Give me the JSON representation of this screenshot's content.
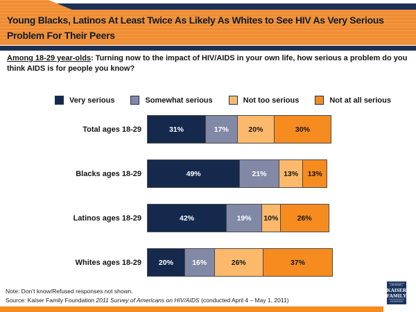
{
  "header": {
    "title": "Young Blacks, Latinos At Least Twice As Likely As Whites to See HIV As Very Serious Problem For Their Peers"
  },
  "question": {
    "lead": "Among 18-29 year-olds",
    "rest": ": Turning now to the impact of HIV/AIDS in your own life, how serious a problem do you think AIDS is for people you know?"
  },
  "chart_data": {
    "type": "bar",
    "stacked": true,
    "orientation": "horizontal",
    "value_suffix": "%",
    "xlim": [
      0,
      100
    ],
    "grid": false,
    "legend_position": "top",
    "categories": [
      "Total ages 18-29",
      "Blacks ages 18-29",
      "Latinos ages 18-29",
      "Whites ages 18-29"
    ],
    "series": [
      {
        "name": "Very serious",
        "color": "#15294d",
        "label_color": "#ffffff",
        "values": [
          31,
          49,
          42,
          20
        ]
      },
      {
        "name": "Somewhat serious",
        "color": "#8289a7",
        "label_color": "#ffffff",
        "values": [
          17,
          21,
          19,
          16
        ]
      },
      {
        "name": "Not too serious",
        "color": "#fcb96b",
        "label_color": "#141414",
        "values": [
          20,
          13,
          10,
          26
        ]
      },
      {
        "name": "Not at all serious",
        "color": "#f68b1f",
        "label_color": "#141414",
        "values": [
          30,
          13,
          26,
          37
        ]
      }
    ]
  },
  "footer": {
    "note": "Note: Don’t know/Refused responses not shown.",
    "source_prefix": "Source: Kaiser Family Foundation ",
    "source_italic": "2011 Survey of Americans on HIV/AIDS",
    "source_suffix": " (conducted April 4 – May 1, 2011)"
  },
  "logo": {
    "line1": "THE HENRY J.",
    "line2": "KAISER",
    "line3": "FAMILY",
    "line4": "FOUNDATION"
  },
  "colors": {
    "accent_orange": "#f68b1f",
    "header_orange": "#ef8d33",
    "navy": "#1c3155",
    "bar_navy": "#15294d",
    "bar_gray": "#8289a7",
    "bar_light_orange": "#fcb96b",
    "logo_navy": "#1b3561"
  }
}
